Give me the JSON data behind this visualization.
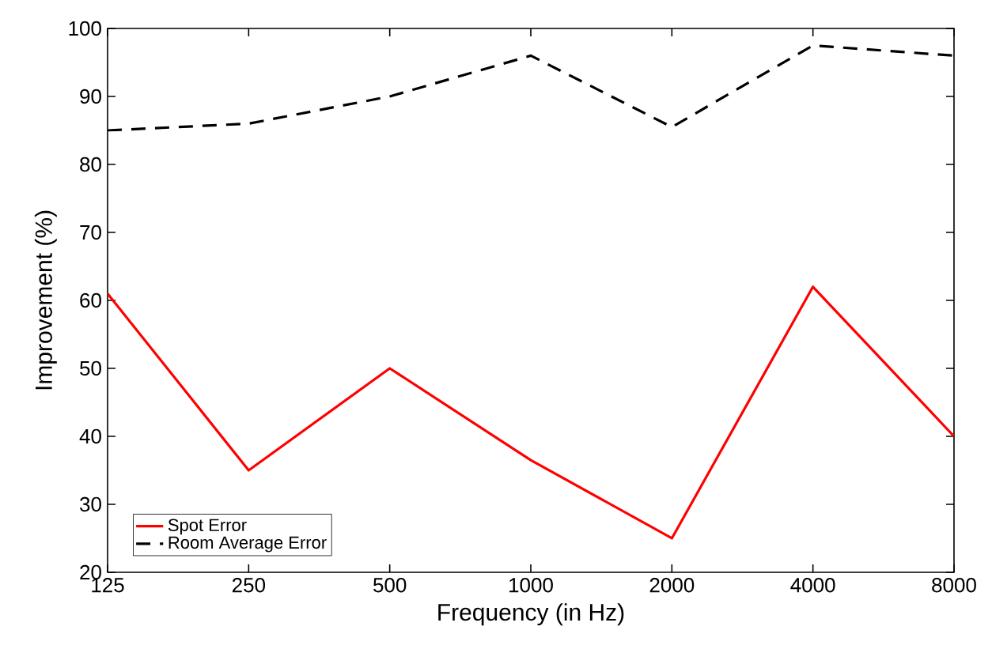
{
  "chart_data": {
    "type": "line",
    "xlabel": "Frequency (in Hz)",
    "ylabel": "Improvement (%)",
    "categories": [
      "125",
      "250",
      "500",
      "1000",
      "2000",
      "4000",
      "8000"
    ],
    "ylim": [
      20,
      100
    ],
    "yticks": [
      20,
      30,
      40,
      50,
      60,
      70,
      80,
      90,
      100
    ],
    "legend": "bottom left",
    "grid": false,
    "series": [
      {
        "name": "Spot Error",
        "color": "#ff0000",
        "line_style": "solid",
        "values": [
          61,
          35,
          50,
          36.5,
          25,
          62,
          40
        ]
      },
      {
        "name": "Room Average Error",
        "color": "#000000",
        "line_style": "dashed",
        "values": [
          85,
          86,
          90,
          96,
          85.5,
          97.5,
          96
        ]
      }
    ]
  }
}
